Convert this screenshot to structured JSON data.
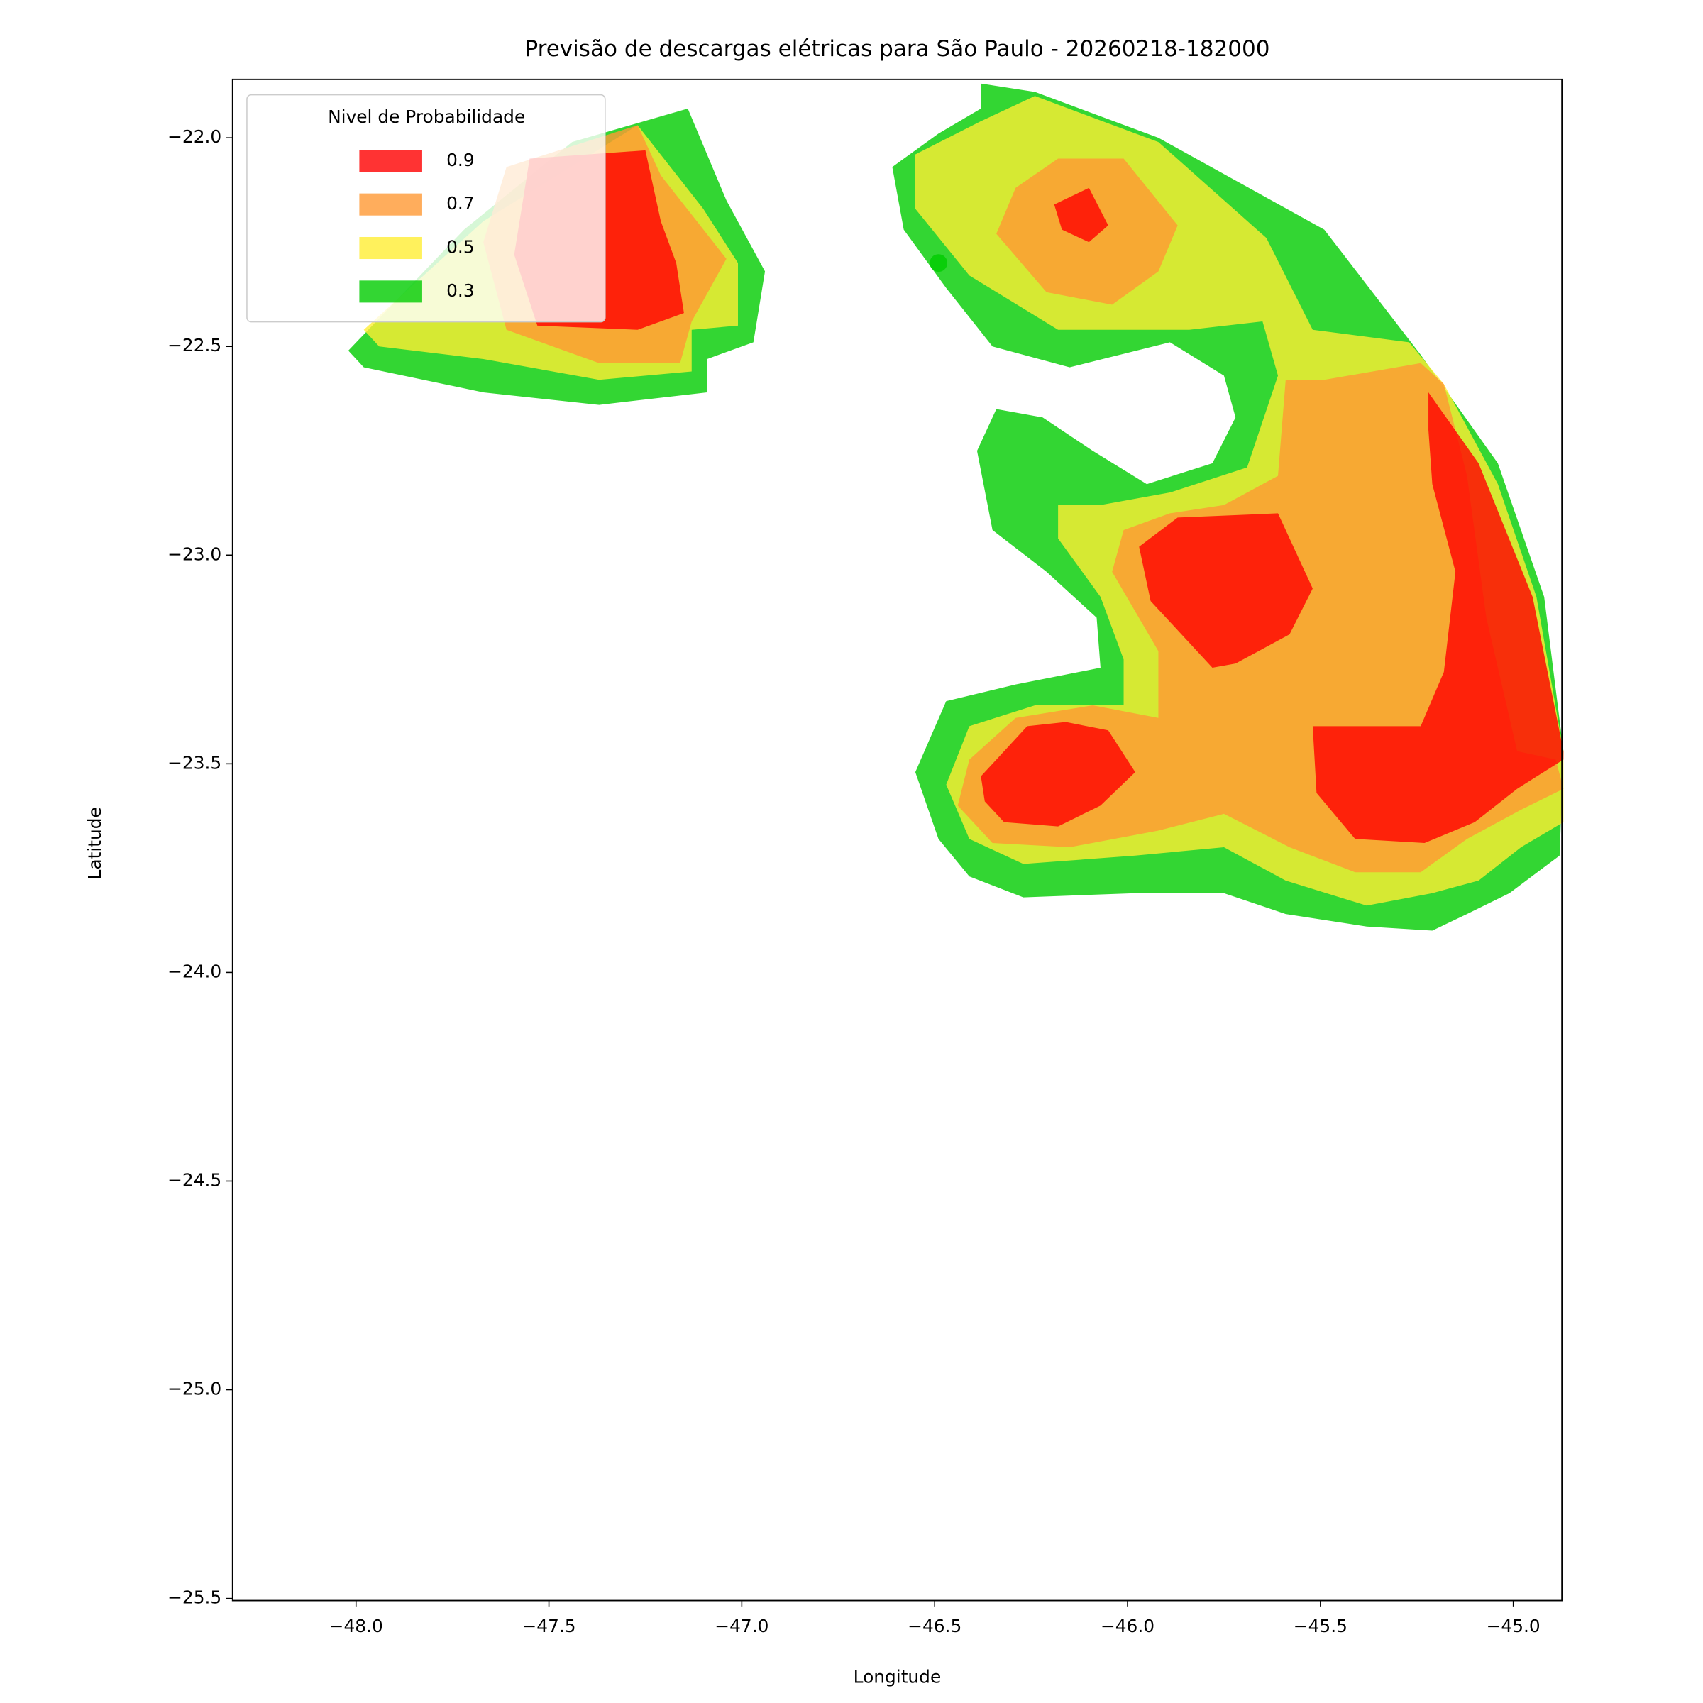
{
  "chart_data": {
    "type": "contour",
    "title": "Previsão de descargas elétricas para São Paulo - 20260218-182000",
    "x_label": "Longitude",
    "y_label": "Latitude",
    "legend_title": "Nivel de Probabilidade",
    "legend": "upper left",
    "alpha": 0.8,
    "xlim": [
      -48.32,
      -44.874
    ],
    "ylim": [
      -25.505,
      -21.86
    ],
    "xticks": [
      {
        "value": -48,
        "label": "−48.0"
      },
      {
        "value": -47.5,
        "label": "−47.5"
      },
      {
        "value": -47,
        "label": "−47.0"
      },
      {
        "value": -46.5,
        "label": "−46.5"
      },
      {
        "value": -46,
        "label": "−46.0"
      },
      {
        "value": -45.5,
        "label": "−45.5"
      },
      {
        "value": -45,
        "label": "−45.0"
      }
    ],
    "yticks": [
      {
        "value": -22,
        "label": "−22.0"
      },
      {
        "value": -22.5,
        "label": "−22.5"
      },
      {
        "value": -23,
        "label": "−23.0"
      },
      {
        "value": -23.5,
        "label": "−23.5"
      },
      {
        "value": -24,
        "label": "−24.0"
      },
      {
        "value": -24.5,
        "label": "−24.5"
      },
      {
        "value": -25,
        "label": "−25.0"
      },
      {
        "value": -25.5,
        "label": "−25.5"
      }
    ],
    "series": [
      {
        "name": "0.9",
        "color": "#ff0000",
        "polygons": [
          [
            [
              -47.55,
              -22.05
            ],
            [
              -47.25,
              -22.03
            ],
            [
              -47.21,
              -22.2
            ],
            [
              -47.17,
              -22.3
            ],
            [
              -47.15,
              -22.42
            ],
            [
              -47.27,
              -22.46
            ],
            [
              -47.53,
              -22.45
            ],
            [
              -47.59,
              -22.28
            ]
          ],
          [
            [
              -46.19,
              -22.16
            ],
            [
              -46.1,
              -22.12
            ],
            [
              -46.05,
              -22.21
            ],
            [
              -46.1,
              -22.25
            ],
            [
              -46.17,
              -22.22
            ]
          ],
          [
            [
              -45.22,
              -22.61
            ],
            [
              -45.09,
              -22.78
            ],
            [
              -44.95,
              -23.1
            ],
            [
              -44.87,
              -23.47
            ],
            [
              -44.87,
              -23.49
            ],
            [
              -44.99,
              -23.56
            ],
            [
              -45.1,
              -23.64
            ],
            [
              -45.23,
              -23.69
            ],
            [
              -45.41,
              -23.68
            ],
            [
              -45.51,
              -23.57
            ],
            [
              -45.52,
              -23.41
            ],
            [
              -45.24,
              -23.41
            ],
            [
              -45.18,
              -23.28
            ],
            [
              -45.15,
              -23.04
            ],
            [
              -45.21,
              -22.83
            ],
            [
              -45.22,
              -22.7
            ]
          ],
          [
            [
              -45.97,
              -22.98
            ],
            [
              -45.87,
              -22.91
            ],
            [
              -45.61,
              -22.9
            ],
            [
              -45.52,
              -23.08
            ],
            [
              -45.58,
              -23.19
            ],
            [
              -45.72,
              -23.26
            ],
            [
              -45.78,
              -23.27
            ],
            [
              -45.85,
              -23.2
            ],
            [
              -45.94,
              -23.11
            ]
          ],
          [
            [
              -46.38,
              -23.53
            ],
            [
              -46.26,
              -23.41
            ],
            [
              -46.16,
              -23.4
            ],
            [
              -46.05,
              -23.42
            ],
            [
              -45.98,
              -23.52
            ],
            [
              -46.07,
              -23.6
            ],
            [
              -46.18,
              -23.65
            ],
            [
              -46.32,
              -23.64
            ],
            [
              -46.37,
              -23.59
            ]
          ]
        ]
      },
      {
        "name": "0.7",
        "color": "#ff9933",
        "polygons": [
          [
            [
              -47.61,
              -22.07
            ],
            [
              -47.27,
              -21.97
            ],
            [
              -47.21,
              -22.09
            ],
            [
              -47.04,
              -22.29
            ],
            [
              -47.13,
              -22.44
            ],
            [
              -47.16,
              -22.54
            ],
            [
              -47.37,
              -22.54
            ],
            [
              -47.61,
              -22.46
            ],
            [
              -47.67,
              -22.25
            ]
          ],
          [
            [
              -46.29,
              -22.12
            ],
            [
              -46.18,
              -22.05
            ],
            [
              -46.01,
              -22.05
            ],
            [
              -45.87,
              -22.21
            ],
            [
              -45.92,
              -22.32
            ],
            [
              -46.04,
              -22.4
            ],
            [
              -46.21,
              -22.37
            ],
            [
              -46.34,
              -22.23
            ]
          ],
          [
            [
              -45.59,
              -22.58
            ],
            [
              -45.49,
              -22.58
            ],
            [
              -45.24,
              -22.54
            ],
            [
              -45.18,
              -22.59
            ],
            [
              -45.12,
              -22.81
            ],
            [
              -45.07,
              -23.15
            ],
            [
              -44.99,
              -23.47
            ],
            [
              -44.89,
              -23.49
            ],
            [
              -44.87,
              -23.56
            ],
            [
              -44.98,
              -23.61
            ],
            [
              -45.12,
              -23.68
            ],
            [
              -45.24,
              -23.76
            ],
            [
              -45.41,
              -23.76
            ],
            [
              -45.58,
              -23.7
            ],
            [
              -45.75,
              -23.62
            ],
            [
              -45.92,
              -23.66
            ],
            [
              -46.15,
              -23.7
            ],
            [
              -46.35,
              -23.69
            ],
            [
              -46.44,
              -23.6
            ],
            [
              -46.41,
              -23.49
            ],
            [
              -46.29,
              -23.39
            ],
            [
              -46.09,
              -23.36
            ],
            [
              -45.92,
              -23.39
            ],
            [
              -45.92,
              -23.23
            ],
            [
              -46.04,
              -23.04
            ],
            [
              -46.01,
              -22.94
            ],
            [
              -45.89,
              -22.9
            ],
            [
              -45.75,
              -22.88
            ],
            [
              -45.61,
              -22.81
            ]
          ]
        ]
      },
      {
        "name": "0.5",
        "color": "#ffee33",
        "polygons": [
          [
            [
              -47.98,
              -22.46
            ],
            [
              -47.67,
              -22.2
            ],
            [
              -47.27,
              -21.97
            ],
            [
              -47.1,
              -22.17
            ],
            [
              -47.01,
              -22.3
            ],
            [
              -47.01,
              -22.45
            ],
            [
              -47.13,
              -22.46
            ],
            [
              -47.13,
              -22.56
            ],
            [
              -47.37,
              -22.58
            ],
            [
              -47.67,
              -22.53
            ],
            [
              -47.94,
              -22.5
            ]
          ],
          [
            [
              -46.24,
              -21.9
            ],
            [
              -45.92,
              -22.01
            ],
            [
              -45.64,
              -22.24
            ],
            [
              -45.52,
              -22.46
            ],
            [
              -45.27,
              -22.49
            ],
            [
              -45.18,
              -22.59
            ],
            [
              -45.04,
              -22.83
            ],
            [
              -44.94,
              -23.1
            ],
            [
              -44.87,
              -23.47
            ],
            [
              -44.87,
              -23.64
            ],
            [
              -44.98,
              -23.7
            ],
            [
              -45.09,
              -23.78
            ],
            [
              -45.21,
              -23.81
            ],
            [
              -45.38,
              -23.84
            ],
            [
              -45.59,
              -23.78
            ],
            [
              -45.75,
              -23.7
            ],
            [
              -45.98,
              -23.72
            ],
            [
              -46.27,
              -23.74
            ],
            [
              -46.41,
              -23.68
            ],
            [
              -46.47,
              -23.55
            ],
            [
              -46.41,
              -23.41
            ],
            [
              -46.24,
              -23.36
            ],
            [
              -46.01,
              -23.36
            ],
            [
              -46.01,
              -23.25
            ],
            [
              -46.07,
              -23.1
            ],
            [
              -46.18,
              -22.96
            ],
            [
              -46.18,
              -22.88
            ],
            [
              -46.07,
              -22.88
            ],
            [
              -45.89,
              -22.85
            ],
            [
              -45.69,
              -22.79
            ],
            [
              -45.61,
              -22.57
            ],
            [
              -45.65,
              -22.44
            ],
            [
              -45.84,
              -22.46
            ],
            [
              -46.18,
              -22.46
            ],
            [
              -46.41,
              -22.33
            ],
            [
              -46.55,
              -22.17
            ],
            [
              -46.55,
              -22.04
            ],
            [
              -46.38,
              -21.96
            ]
          ]
        ]
      },
      {
        "name": "0.3",
        "color": "#00cc00",
        "polygons": [
          [
            [
              -48.02,
              -22.51
            ],
            [
              -47.72,
              -22.22
            ],
            [
              -47.44,
              -22.01
            ],
            [
              -47.14,
              -21.93
            ],
            [
              -47.04,
              -22.15
            ],
            [
              -46.94,
              -22.32
            ],
            [
              -46.97,
              -22.49
            ],
            [
              -47.09,
              -22.53
            ],
            [
              -47.09,
              -22.61
            ],
            [
              -47.37,
              -22.64
            ],
            [
              -47.67,
              -22.61
            ],
            [
              -47.98,
              -22.55
            ]
          ],
          [
            [
              -46.38,
              -21.87
            ],
            [
              -46.24,
              -21.89
            ],
            [
              -45.92,
              -22.0
            ],
            [
              -45.49,
              -22.22
            ],
            [
              -45.24,
              -22.52
            ],
            [
              -45.04,
              -22.78
            ],
            [
              -44.92,
              -23.1
            ],
            [
              -44.87,
              -23.47
            ],
            [
              -44.88,
              -23.72
            ],
            [
              -45.01,
              -23.81
            ],
            [
              -45.12,
              -23.86
            ],
            [
              -45.21,
              -23.9
            ],
            [
              -45.38,
              -23.89
            ],
            [
              -45.59,
              -23.86
            ],
            [
              -45.75,
              -23.81
            ],
            [
              -45.98,
              -23.81
            ],
            [
              -46.27,
              -23.82
            ],
            [
              -46.41,
              -23.77
            ],
            [
              -46.49,
              -23.68
            ],
            [
              -46.55,
              -23.52
            ],
            [
              -46.47,
              -23.35
            ],
            [
              -46.29,
              -23.31
            ],
            [
              -46.07,
              -23.27
            ],
            [
              -46.08,
              -23.15
            ],
            [
              -46.21,
              -23.04
            ],
            [
              -46.35,
              -22.94
            ],
            [
              -46.39,
              -22.75
            ],
            [
              -46.34,
              -22.65
            ],
            [
              -46.22,
              -22.67
            ],
            [
              -46.09,
              -22.75
            ],
            [
              -45.95,
              -22.83
            ],
            [
              -45.78,
              -22.78
            ],
            [
              -45.72,
              -22.67
            ],
            [
              -45.75,
              -22.57
            ],
            [
              -45.89,
              -22.49
            ],
            [
              -46.15,
              -22.55
            ],
            [
              -46.35,
              -22.5
            ],
            [
              -46.47,
              -22.36
            ],
            [
              -46.58,
              -22.22
            ],
            [
              -46.61,
              -22.07
            ],
            [
              -46.49,
              -21.99
            ],
            [
              -46.38,
              -21.93
            ]
          ]
        ]
      }
    ],
    "marker": {
      "x": -46.49,
      "y": -22.3,
      "color": "#00cc00"
    }
  }
}
